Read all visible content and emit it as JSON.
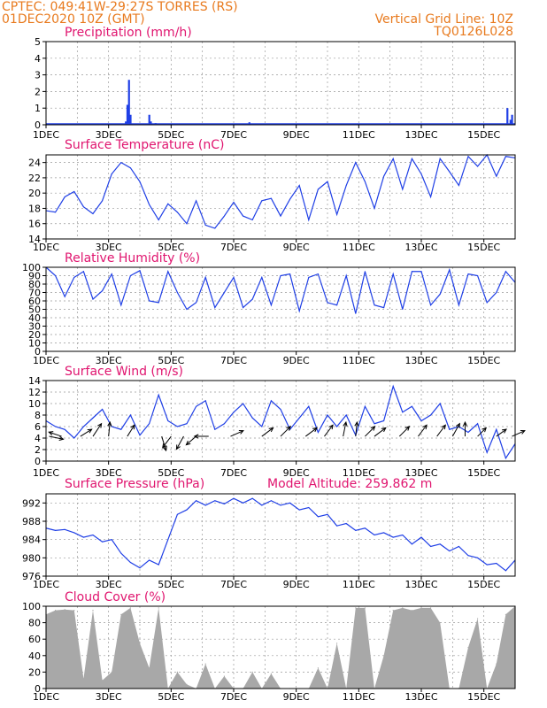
{
  "header": {
    "line1_left": "CPTEC:   049:41W-29:27S  TORRES (RS)",
    "line2_left": "01DEC2020 10Z (GMT)",
    "line1_right": "Vertical Grid Line: 10Z",
    "line2_right": "TQ0126L028"
  },
  "colors": {
    "series": "#1f3fe6",
    "title": "#e0156f",
    "header": "#e87a1e",
    "cloud": "#a8a8a8",
    "arrow": "#000000"
  },
  "chart_data": [
    {
      "type": "bar",
      "title": "Precipitation (mm/h)",
      "ylim": [
        0,
        5
      ],
      "yticks": [
        0,
        1,
        2,
        3,
        4,
        5
      ],
      "xticks": [
        "1DEC",
        "3DEC",
        "5DEC",
        "7DEC",
        "9DEC",
        "11DEC",
        "13DEC",
        "15DEC"
      ],
      "x_days": [
        3.55,
        3.6,
        3.65,
        3.7,
        4.3,
        4.35,
        4.5,
        7.5,
        15.75,
        15.85,
        15.9
      ],
      "values": [
        0.2,
        1.2,
        2.7,
        0.6,
        0.6,
        0.2,
        0.1,
        0.15,
        1.0,
        0.3,
        0.6
      ]
    },
    {
      "type": "line",
      "title": "Surface Temperature (nC)",
      "ylim": [
        14,
        25
      ],
      "yticks": [
        14,
        16,
        18,
        20,
        22,
        24
      ],
      "xticks": [
        "1DEC",
        "3DEC",
        "5DEC",
        "7DEC",
        "9DEC",
        "11DEC",
        "13DEC",
        "15DEC"
      ],
      "x_days": [
        1.0,
        1.3,
        1.6,
        1.9,
        2.2,
        2.5,
        2.8,
        3.1,
        3.4,
        3.7,
        4.0,
        4.3,
        4.6,
        4.9,
        5.2,
        5.5,
        5.8,
        6.1,
        6.4,
        6.7,
        7.0,
        7.3,
        7.6,
        7.9,
        8.2,
        8.5,
        8.8,
        9.1,
        9.4,
        9.7,
        10.0,
        10.3,
        10.6,
        10.9,
        11.2,
        11.5,
        11.8,
        12.1,
        12.4,
        12.7,
        13.0,
        13.3,
        13.6,
        13.9,
        14.2,
        14.5,
        14.8,
        15.1,
        15.4,
        15.7,
        16.0
      ],
      "values": [
        17.7,
        17.5,
        19.5,
        20.2,
        18.2,
        17.3,
        19.0,
        22.5,
        24.0,
        23.3,
        21.5,
        18.5,
        16.5,
        18.6,
        17.5,
        16.0,
        19.0,
        15.8,
        15.4,
        17.0,
        18.8,
        17.0,
        16.5,
        19.0,
        19.3,
        17.0,
        19.2,
        21.0,
        16.5,
        20.5,
        21.5,
        17.2,
        21.0,
        24.0,
        21.5,
        18.0,
        22.2,
        24.5,
        20.5,
        24.5,
        22.5,
        19.5,
        24.5,
        22.8,
        21.0,
        24.8,
        23.5,
        25.0,
        22.2,
        24.8,
        24.6
      ]
    },
    {
      "type": "line",
      "title": "Relative Humidity (%)",
      "ylim": [
        0,
        100
      ],
      "yticks": [
        0,
        10,
        20,
        30,
        40,
        50,
        60,
        70,
        80,
        90,
        100
      ],
      "xticks": [
        "1DEC",
        "3DEC",
        "5DEC",
        "7DEC",
        "9DEC",
        "11DEC",
        "13DEC",
        "15DEC"
      ],
      "x_days": [
        1.0,
        1.3,
        1.6,
        1.9,
        2.2,
        2.5,
        2.8,
        3.1,
        3.4,
        3.7,
        4.0,
        4.3,
        4.6,
        4.9,
        5.2,
        5.5,
        5.8,
        6.1,
        6.4,
        6.7,
        7.0,
        7.3,
        7.6,
        7.9,
        8.2,
        8.5,
        8.8,
        9.1,
        9.4,
        9.7,
        10.0,
        10.3,
        10.6,
        10.9,
        11.2,
        11.5,
        11.8,
        12.1,
        12.4,
        12.7,
        13.0,
        13.3,
        13.6,
        13.9,
        14.2,
        14.5,
        14.8,
        15.1,
        15.4,
        15.7,
        16.0
      ],
      "values": [
        100,
        90,
        65,
        88,
        95,
        62,
        72,
        92,
        55,
        90,
        96,
        60,
        58,
        95,
        70,
        50,
        58,
        88,
        52,
        70,
        88,
        52,
        62,
        88,
        55,
        90,
        92,
        48,
        88,
        92,
        58,
        55,
        90,
        45,
        95,
        55,
        52,
        92,
        50,
        95,
        95,
        55,
        68,
        97,
        55,
        92,
        90,
        58,
        70,
        95,
        82
      ]
    },
    {
      "type": "line",
      "title": "Surface Wind (m/s)",
      "ylim": [
        0,
        14
      ],
      "yticks": [
        0,
        2,
        4,
        6,
        8,
        10,
        12,
        14
      ],
      "xticks": [
        "1DEC",
        "3DEC",
        "5DEC",
        "7DEC",
        "9DEC",
        "11DEC",
        "13DEC",
        "15DEC"
      ],
      "x_days": [
        1.0,
        1.3,
        1.6,
        1.9,
        2.2,
        2.5,
        2.8,
        3.1,
        3.4,
        3.7,
        4.0,
        4.3,
        4.6,
        4.9,
        5.2,
        5.5,
        5.8,
        6.1,
        6.4,
        6.7,
        7.0,
        7.3,
        7.6,
        7.9,
        8.2,
        8.5,
        8.8,
        9.1,
        9.4,
        9.7,
        10.0,
        10.3,
        10.6,
        10.9,
        11.2,
        11.5,
        11.8,
        12.1,
        12.4,
        12.7,
        13.0,
        13.3,
        13.6,
        13.9,
        14.2,
        14.5,
        14.8,
        15.1,
        15.4,
        15.7,
        16.0
      ],
      "values": [
        7.0,
        6.0,
        5.5,
        4.0,
        6.0,
        7.5,
        9.0,
        6.0,
        5.5,
        8.0,
        4.5,
        6.5,
        11.5,
        7.0,
        6.0,
        6.5,
        9.5,
        10.5,
        5.5,
        6.5,
        8.5,
        10.0,
        7.5,
        6.0,
        10.5,
        9.0,
        5.5,
        7.5,
        9.5,
        5.0,
        8.0,
        6.0,
        8.0,
        4.5,
        9.5,
        6.5,
        7.0,
        13.0,
        8.5,
        9.5,
        7.0,
        8.0,
        10.0,
        5.5,
        6.0,
        5.0,
        6.5,
        1.5,
        5.5,
        0.5,
        3.0
      ],
      "arrows": [
        {
          "day": 1.1,
          "u": 1.0,
          "v": -0.2
        },
        {
          "day": 1.5,
          "u": -0.9,
          "v": 0.3
        },
        {
          "day": 2.1,
          "u": 0.8,
          "v": 0.5
        },
        {
          "day": 2.5,
          "u": 0.6,
          "v": 0.9
        },
        {
          "day": 3.0,
          "u": 0.1,
          "v": 1.0
        },
        {
          "day": 3.6,
          "u": 0.5,
          "v": 0.8
        },
        {
          "day": 4.7,
          "u": 0.3,
          "v": -1.0
        },
        {
          "day": 5.0,
          "u": -0.6,
          "v": -0.8
        },
        {
          "day": 5.4,
          "u": -0.5,
          "v": -0.9
        },
        {
          "day": 5.8,
          "u": -0.7,
          "v": -0.6
        },
        {
          "day": 6.2,
          "u": -1.0,
          "v": 0.0
        },
        {
          "day": 6.9,
          "u": 0.9,
          "v": 0.4
        },
        {
          "day": 7.9,
          "u": 0.8,
          "v": 0.6
        },
        {
          "day": 8.5,
          "u": 0.7,
          "v": 0.7
        },
        {
          "day": 9.3,
          "u": 0.8,
          "v": 0.6
        },
        {
          "day": 9.9,
          "u": 0.6,
          "v": 0.8
        },
        {
          "day": 10.5,
          "u": 0.2,
          "v": 1.0
        },
        {
          "day": 10.9,
          "u": 0.1,
          "v": 1.0
        },
        {
          "day": 11.2,
          "u": 0.7,
          "v": 0.7
        },
        {
          "day": 11.5,
          "u": 0.8,
          "v": 0.6
        },
        {
          "day": 12.3,
          "u": 0.7,
          "v": 0.7
        },
        {
          "day": 12.9,
          "u": 0.6,
          "v": 0.8
        },
        {
          "day": 13.5,
          "u": 0.6,
          "v": 0.8
        },
        {
          "day": 14.0,
          "u": 0.5,
          "v": 0.9
        },
        {
          "day": 14.4,
          "u": 0.0,
          "v": 1.0
        },
        {
          "day": 14.8,
          "u": 0.6,
          "v": 0.6
        },
        {
          "day": 15.4,
          "u": 0.7,
          "v": 0.5
        },
        {
          "day": 15.9,
          "u": 0.9,
          "v": 0.4
        }
      ]
    },
    {
      "type": "line",
      "title": "Surface Pressure (hPa)",
      "annotation": "Model Altitude: 259.862 m",
      "ylim": [
        976,
        994
      ],
      "yticks": [
        976,
        980,
        984,
        988,
        992
      ],
      "xticks": [
        "1DEC",
        "3DEC",
        "5DEC",
        "7DEC",
        "9DEC",
        "11DEC",
        "13DEC",
        "15DEC"
      ],
      "x_days": [
        1.0,
        1.3,
        1.6,
        1.9,
        2.2,
        2.5,
        2.8,
        3.1,
        3.4,
        3.7,
        4.0,
        4.3,
        4.6,
        4.9,
        5.2,
        5.5,
        5.8,
        6.1,
        6.4,
        6.7,
        7.0,
        7.3,
        7.6,
        7.9,
        8.2,
        8.5,
        8.8,
        9.1,
        9.4,
        9.7,
        10.0,
        10.3,
        10.6,
        10.9,
        11.2,
        11.5,
        11.8,
        12.1,
        12.4,
        12.7,
        13.0,
        13.3,
        13.6,
        13.9,
        14.2,
        14.5,
        14.8,
        15.1,
        15.4,
        15.7,
        16.0
      ],
      "values": [
        986.5,
        986.0,
        986.2,
        985.5,
        984.5,
        985.0,
        983.5,
        984.0,
        981.0,
        979.0,
        977.8,
        979.5,
        978.5,
        984.0,
        989.5,
        990.5,
        992.5,
        991.5,
        992.5,
        991.8,
        993.0,
        992.0,
        993.0,
        991.5,
        992.5,
        991.5,
        992.0,
        990.5,
        991.0,
        989.0,
        989.5,
        987.0,
        987.5,
        986.0,
        986.5,
        985.0,
        985.5,
        984.5,
        985.0,
        983.0,
        984.5,
        982.5,
        983.0,
        981.5,
        982.5,
        980.5,
        980.0,
        978.5,
        978.8,
        977.2,
        979.5
      ]
    },
    {
      "type": "bar",
      "title": "Cloud Cover (%)",
      "ylim": [
        0,
        100
      ],
      "yticks": [
        0,
        20,
        40,
        60,
        80,
        100
      ],
      "xticks": [
        "1DEC",
        "3DEC",
        "5DEC",
        "7DEC",
        "9DEC",
        "11DEC",
        "13DEC",
        "15DEC"
      ],
      "x_days": [
        1.0,
        1.3,
        1.6,
        1.9,
        2.2,
        2.5,
        2.8,
        3.1,
        3.4,
        3.7,
        4.0,
        4.3,
        4.6,
        4.9,
        5.2,
        5.5,
        5.8,
        6.1,
        6.4,
        6.7,
        7.0,
        7.3,
        7.6,
        7.9,
        8.2,
        8.5,
        8.8,
        9.1,
        9.4,
        9.7,
        10.0,
        10.3,
        10.6,
        10.9,
        11.2,
        11.5,
        11.8,
        12.1,
        12.4,
        12.7,
        13.0,
        13.3,
        13.6,
        13.9,
        14.2,
        14.5,
        14.8,
        15.1,
        15.4,
        15.7,
        16.0
      ],
      "values": [
        90,
        95,
        96,
        95,
        12,
        95,
        10,
        20,
        90,
        98,
        55,
        25,
        98,
        0,
        20,
        5,
        0,
        30,
        0,
        15,
        0,
        0,
        20,
        0,
        18,
        0,
        0,
        0,
        0,
        25,
        0,
        55,
        0,
        98,
        98,
        0,
        40,
        95,
        98,
        95,
        98,
        98,
        80,
        0,
        0,
        50,
        85,
        0,
        30,
        90,
        100
      ]
    }
  ]
}
